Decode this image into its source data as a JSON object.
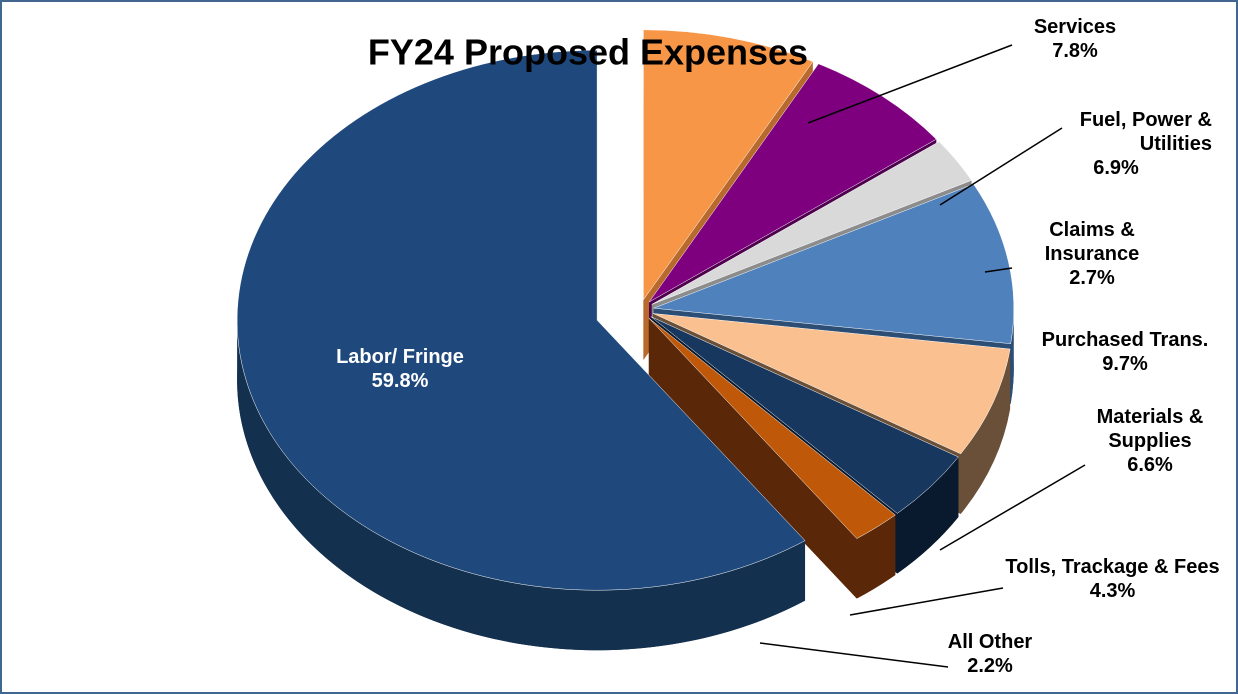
{
  "chart_data": {
    "type": "pie3d",
    "title": "FY24 Proposed Expenses",
    "categories": [
      "Services",
      "Fuel, Power & Utilities",
      "Claims & Insurance",
      "Purchased Trans.",
      "Materials & Supplies",
      "Tolls, Trackage & Fees",
      "All Other",
      "Labor/ Fringe"
    ],
    "values": [
      7.8,
      6.9,
      2.7,
      9.7,
      6.6,
      4.3,
      2.2,
      59.8
    ],
    "value_labels": [
      "7.8%",
      "6.9%",
      "2.7%",
      "9.7%",
      "6.6%",
      "4.3%",
      "2.2%",
      "59.8%"
    ],
    "colors": [
      "#f79646",
      "#7f007f",
      "#d9d9d9",
      "#4f81bd",
      "#fac090",
      "#17375e",
      "#c0580a",
      "#1f497d"
    ],
    "side_colors": [
      "#b86a2c",
      "#4f004f",
      "#8c8c8c",
      "#2c4d74",
      "#6b5039",
      "#0a1a2e",
      "#5a2808",
      "#14304f"
    ]
  }
}
